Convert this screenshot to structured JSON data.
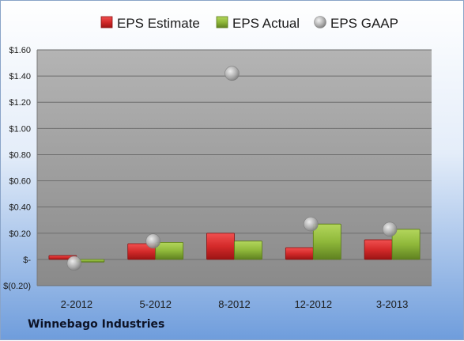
{
  "company_label": "Winnebago Industries",
  "colors": {
    "estimate": "#d42a2a",
    "actual": "#8fb83a",
    "gaap": "#a8a8a8",
    "plot_background_top": "#ababab",
    "plot_background_bottom": "#8c8c8c"
  },
  "chart_data": {
    "type": "bar",
    "title": "",
    "xlabel": "",
    "ylabel": "",
    "categories": [
      "2-2012",
      "5-2012",
      "8-2012",
      "12-2012",
      "3-2013"
    ],
    "series": [
      {
        "name": "EPS Estimate",
        "kind": "bar",
        "values": [
          0.03,
          0.12,
          0.2,
          0.09,
          0.15
        ]
      },
      {
        "name": "EPS Actual",
        "kind": "bar",
        "values": [
          -0.02,
          0.13,
          0.14,
          0.27,
          0.23
        ]
      },
      {
        "name": "EPS GAAP",
        "kind": "marker",
        "values": [
          -0.03,
          0.14,
          1.42,
          0.27,
          0.23
        ]
      }
    ],
    "ylim": [
      -0.2,
      1.6
    ],
    "yticks": [
      -0.2,
      0,
      0.2,
      0.4,
      0.6,
      0.8,
      1.0,
      1.2,
      1.4,
      1.6
    ],
    "ytick_labels": [
      "$(0.20)",
      "$-",
      "$0.20",
      "$0.40",
      "$0.60",
      "$0.80",
      "$1.00",
      "$1.20",
      "$1.40",
      "$1.60"
    ],
    "grid": true,
    "legend_position": "top"
  }
}
